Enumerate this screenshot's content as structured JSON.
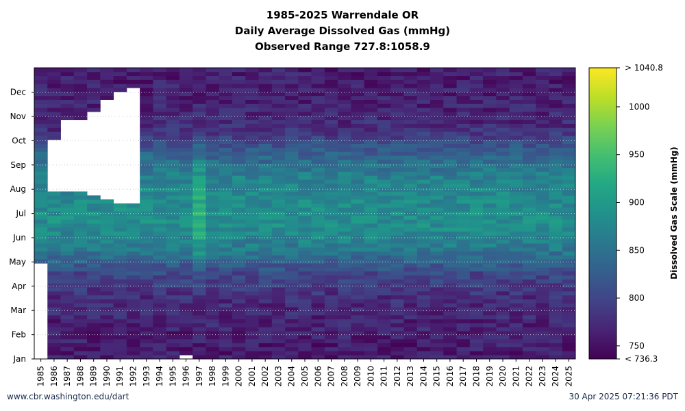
{
  "title_lines": [
    "1985-2025 Warrendale OR",
    "Daily Average Dissolved Gas (mmHg)",
    "Observed Range 727.8:1058.9"
  ],
  "footer": {
    "left": "www.cbr.washington.edu/dart",
    "right": "30 Apr 2025 07:21:36 PDT"
  },
  "colors": {
    "viridis": [
      "#440154",
      "#482475",
      "#414487",
      "#355f8d",
      "#2a788e",
      "#21918c",
      "#22a884",
      "#44bf70",
      "#7ad151",
      "#bddf26",
      "#fde725"
    ],
    "grid": "#cccccc",
    "frame": "#000000"
  },
  "chart_data": {
    "type": "heatmap",
    "title": "1985-2025 Warrendale OR — Daily Average Dissolved Gas (mmHg) — Observed Range 727.8:1058.9",
    "x": [
      "1985",
      "1986",
      "1987",
      "1988",
      "1989",
      "1990",
      "1991",
      "1992",
      "1993",
      "1994",
      "1995",
      "1996",
      "1997",
      "1998",
      "1999",
      "2000",
      "2001",
      "2002",
      "2003",
      "2004",
      "2005",
      "2006",
      "2007",
      "2008",
      "2009",
      "2010",
      "2011",
      "2012",
      "2013",
      "2014",
      "2015",
      "2016",
      "2017",
      "2018",
      "2019",
      "2020",
      "2021",
      "2022",
      "2023",
      "2024",
      "2025"
    ],
    "y_ticks": [
      "Jan",
      "Feb",
      "Mar",
      "Apr",
      "May",
      "Jun",
      "Jul",
      "Aug",
      "Sep",
      "Oct",
      "Nov",
      "Dec"
    ],
    "colorbar": {
      "label": "Dissolved Gas Scale (mmHg)",
      "range": [
        736.3,
        1040.8
      ],
      "ticks": [
        750,
        800,
        850,
        900,
        950,
        1000
      ],
      "min_label": "< 736.3",
      "max_label": "> 1040.8"
    },
    "grid": true,
    "coverage_day_of_year": [
      [
        [
          120,
          365
        ]
      ],
      [
        [
          0,
          210
        ],
        [
          275,
          365
        ]
      ],
      [
        [
          0,
          210
        ],
        [
          300,
          365
        ]
      ],
      [
        [
          0,
          210
        ],
        [
          302,
          365
        ]
      ],
      [
        [
          0,
          205
        ],
        [
          310,
          365
        ]
      ],
      [
        [
          0,
          202
        ],
        [
          325,
          365
        ]
      ],
      [
        [
          0,
          195
        ],
        [
          335,
          365
        ]
      ],
      [
        [
          0,
          193
        ],
        [
          340,
          365
        ]
      ],
      [
        [
          0,
          186
        ],
        [
          135,
          365
        ]
      ],
      [
        [
          0,
          183
        ],
        [
          60,
          365
        ]
      ],
      [
        [
          0,
          190
        ],
        [
          0,
          365
        ]
      ],
      [
        [
          0,
          2
        ],
        [
          3,
          365
        ]
      ],
      [
        [
          0,
          365
        ]
      ],
      [
        [
          0,
          365
        ]
      ],
      [
        [
          0,
          365
        ]
      ],
      [
        [
          0,
          365
        ]
      ],
      [
        [
          0,
          365
        ]
      ],
      [
        [
          0,
          365
        ]
      ],
      [
        [
          0,
          365
        ]
      ],
      [
        [
          0,
          365
        ]
      ],
      [
        [
          0,
          365
        ]
      ],
      [
        [
          0,
          365
        ]
      ],
      [
        [
          0,
          365
        ]
      ],
      [
        [
          0,
          365
        ]
      ],
      [
        [
          0,
          365
        ]
      ],
      [
        [
          0,
          365
        ]
      ],
      [
        [
          0,
          365
        ]
      ],
      [
        [
          0,
          365
        ]
      ],
      [
        [
          0,
          365
        ]
      ],
      [
        [
          0,
          365
        ]
      ],
      [
        [
          0,
          365
        ]
      ],
      [
        [
          0,
          365
        ]
      ],
      [
        [
          0,
          365
        ]
      ],
      [
        [
          0,
          365
        ]
      ],
      [
        [
          0,
          365
        ]
      ],
      [
        [
          0,
          365
        ]
      ],
      [
        [
          0,
          365
        ]
      ],
      [
        [
          0,
          365
        ]
      ],
      [
        [
          0,
          365
        ]
      ],
      [
        [
          0,
          365
        ]
      ],
      [
        [
          0,
          365
        ]
      ]
    ],
    "seasonal_profile_mmHg": {
      "Jan": 760,
      "Feb": 765,
      "Mar": 775,
      "Apr": 800,
      "May": 860,
      "Jun": 885,
      "Jul": 880,
      "Aug": 870,
      "Sep": 830,
      "Oct": 775,
      "Nov": 765,
      "Dec": 762
    },
    "peak_year": "1997",
    "peak_value_mmHg": 1040.8
  }
}
